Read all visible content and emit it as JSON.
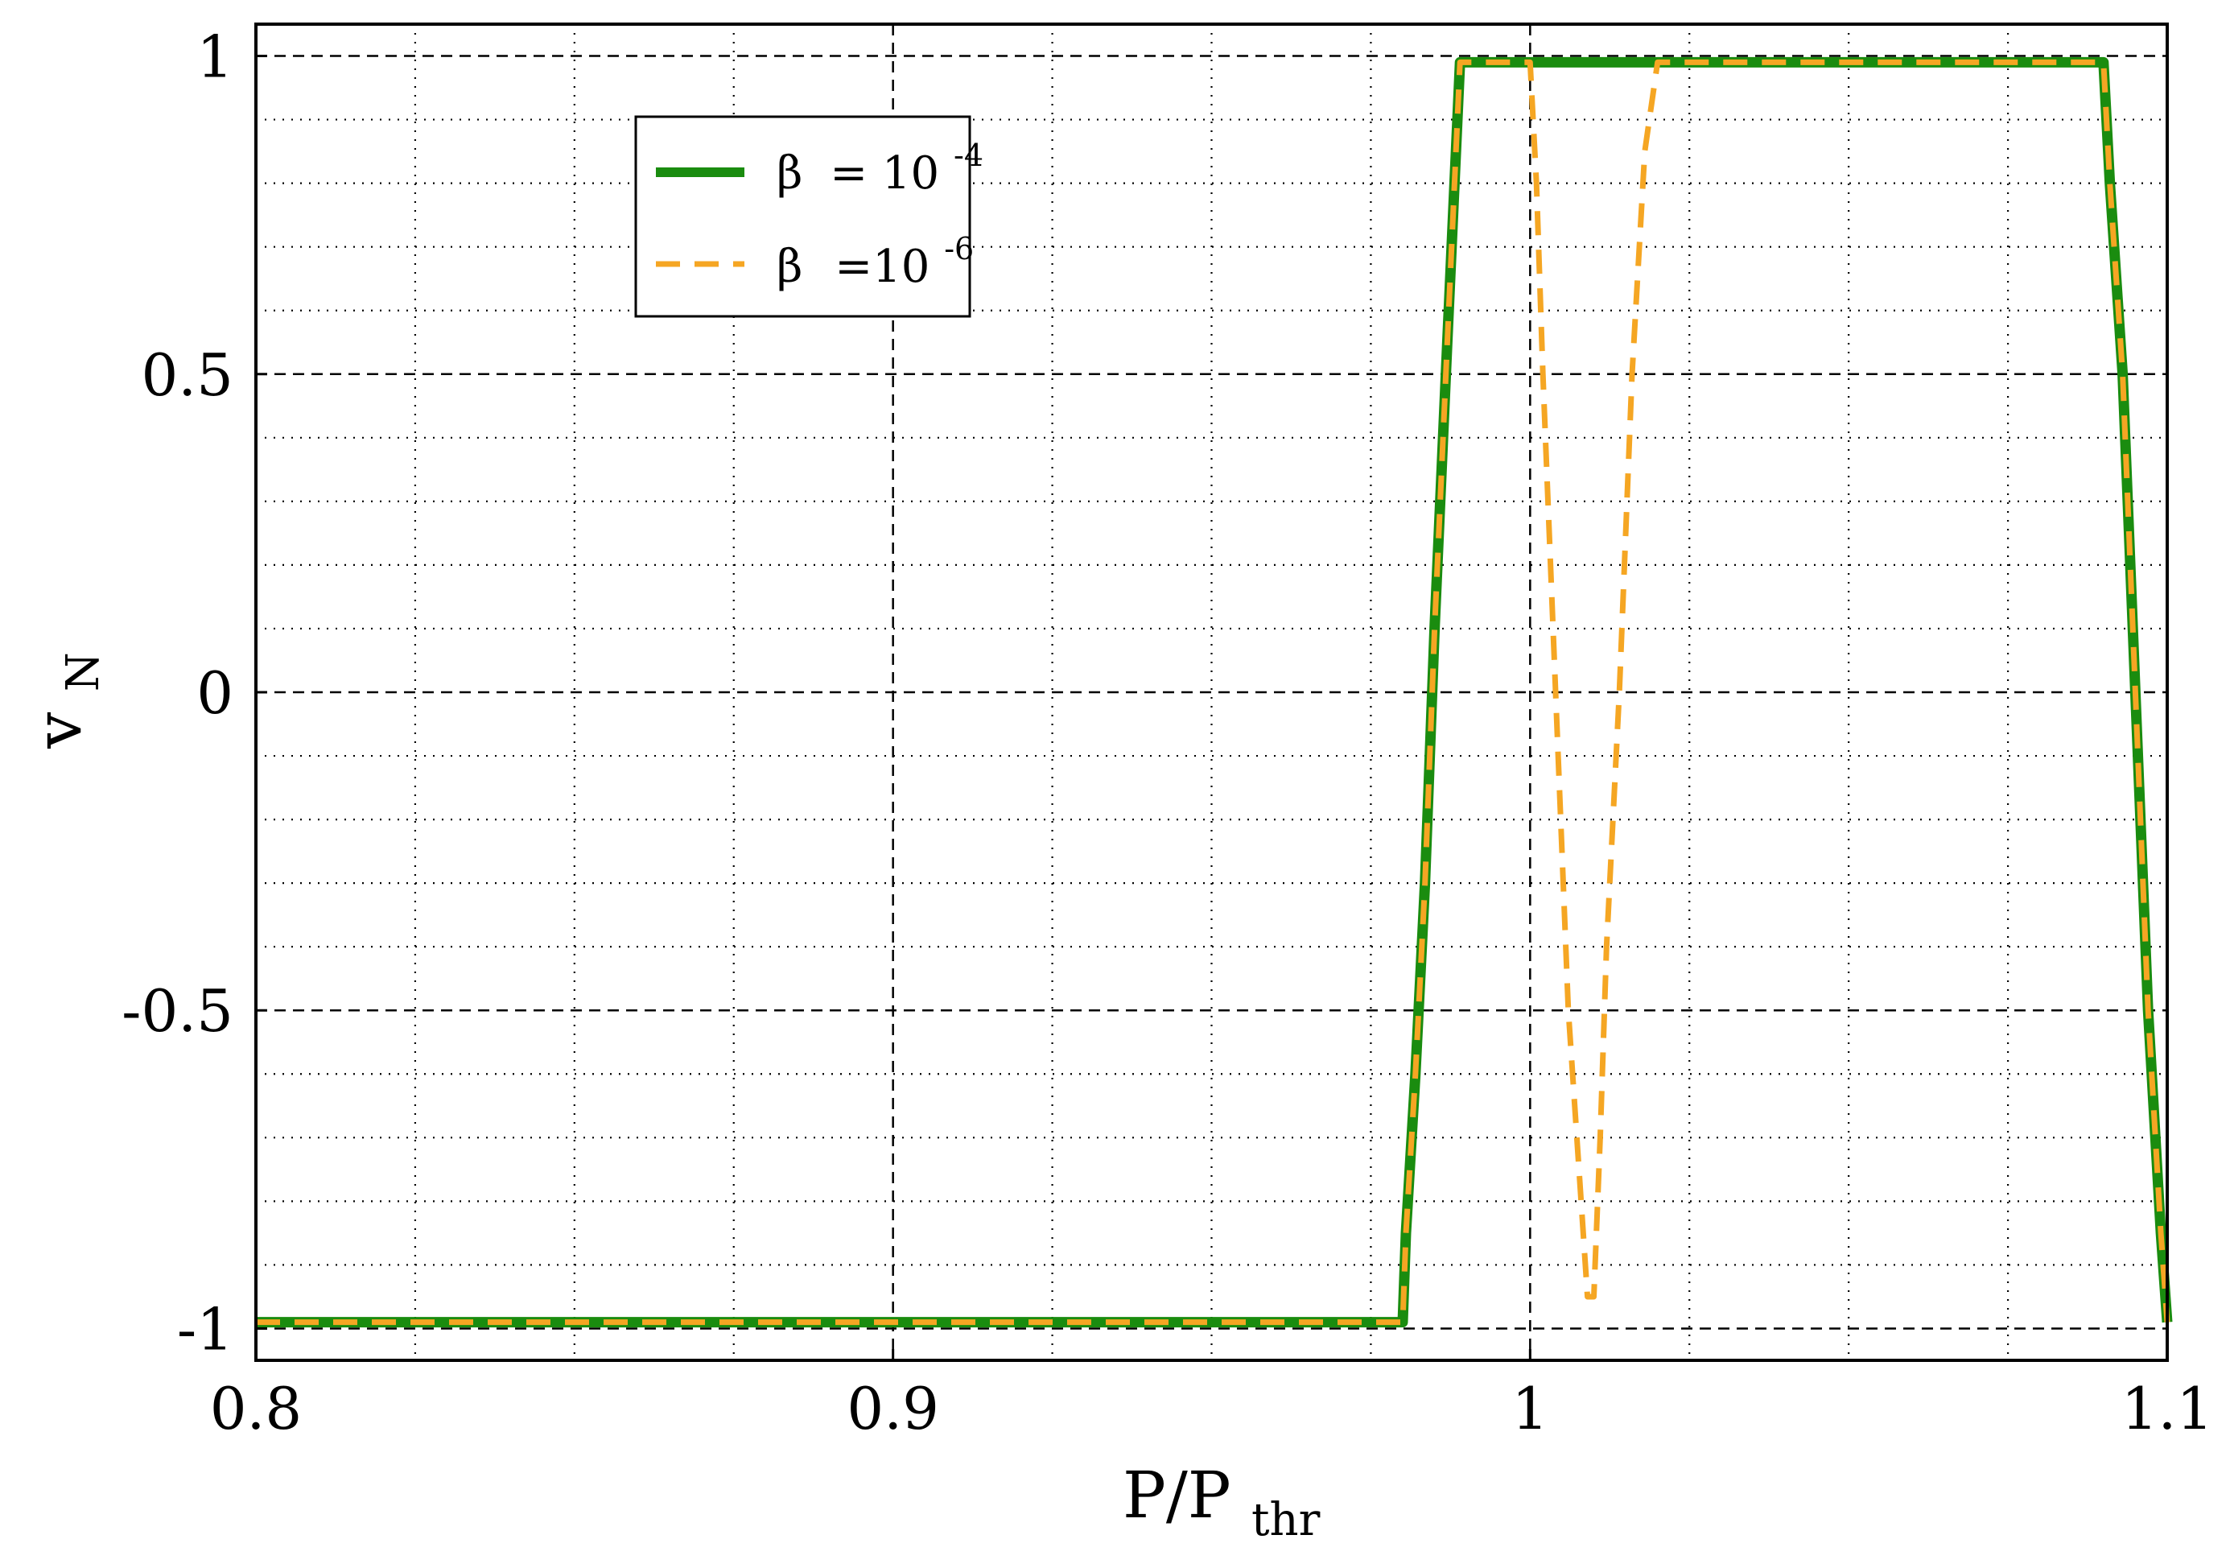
{
  "chart_data": {
    "type": "line",
    "title": "",
    "xlabel": {
      "main": "P/P",
      "sub": "thr"
    },
    "ylabel": {
      "main": "v",
      "sub": "N"
    },
    "xlim": [
      0.8,
      1.1
    ],
    "ylim": [
      -1.05,
      1.05
    ],
    "xticks": [
      {
        "value": 0.8,
        "label": "0.8"
      },
      {
        "value": 0.9,
        "label": "0.9"
      },
      {
        "value": 1.0,
        "label": "1"
      },
      {
        "value": 1.1,
        "label": "1.1"
      }
    ],
    "yticks": [
      {
        "value": -1,
        "label": "-1"
      },
      {
        "value": -0.5,
        "label": "-0.5"
      },
      {
        "value": 0,
        "label": "0"
      },
      {
        "value": 0.5,
        "label": "0.5"
      },
      {
        "value": 1,
        "label": "1"
      }
    ],
    "major_grid_x": [
      0.9,
      1.0
    ],
    "major_grid_y": [
      -1,
      -0.5,
      0,
      0.5,
      1
    ],
    "minor_grid_x": [
      0.825,
      0.85,
      0.875,
      0.925,
      0.95,
      0.975,
      1.025,
      1.05,
      1.075
    ],
    "minor_grid_y": [
      -0.9,
      -0.8,
      -0.7,
      -0.6,
      -0.4,
      -0.3,
      -0.2,
      -0.1,
      0.1,
      0.2,
      0.3,
      0.4,
      0.6,
      0.7,
      0.8,
      0.9
    ],
    "legend": {
      "position": "top-left",
      "entries": [
        {
          "symbol": "β",
          "text": "= 10",
          "exponent": "-4",
          "series": "beta_1e-4"
        },
        {
          "symbol": "β",
          "text": "=10",
          "exponent": "-6",
          "series": "beta_1e-6"
        }
      ]
    },
    "series": [
      {
        "name": "beta_1e-4",
        "color": "#1a8c0f",
        "style": "solid",
        "x": [
          0.8,
          0.98,
          0.9805,
          0.982,
          0.9835,
          0.985,
          0.987,
          0.989,
          1.0,
          1.05,
          1.09,
          1.091,
          1.093,
          1.095,
          1.097,
          1.099,
          1.1
        ],
        "y": [
          -0.99,
          -0.99,
          -0.85,
          -0.6,
          -0.3,
          0.1,
          0.55,
          0.99,
          0.99,
          0.99,
          0.99,
          0.8,
          0.5,
          0.0,
          -0.5,
          -0.85,
          -0.99
        ]
      },
      {
        "name": "beta_1e-6",
        "color": "#f5a623",
        "style": "dashed",
        "x": [
          0.8,
          0.98,
          0.9805,
          0.982,
          0.9835,
          0.985,
          0.987,
          0.989,
          1.0,
          1.001,
          1.002,
          1.004,
          1.006,
          1.008,
          1.009,
          1.01,
          1.011,
          1.012,
          1.014,
          1.016,
          1.018,
          1.02,
          1.05,
          1.09,
          1.091,
          1.093,
          1.095,
          1.097,
          1.099,
          1.1
        ],
        "y": [
          -0.99,
          -0.99,
          -0.85,
          -0.6,
          -0.3,
          0.1,
          0.55,
          0.99,
          0.99,
          0.8,
          0.5,
          0.0,
          -0.5,
          -0.8,
          -0.95,
          -0.95,
          -0.7,
          -0.4,
          0.0,
          0.5,
          0.85,
          0.99,
          0.99,
          0.99,
          0.8,
          0.5,
          0.0,
          -0.5,
          -0.85,
          -0.99
        ]
      }
    ]
  }
}
